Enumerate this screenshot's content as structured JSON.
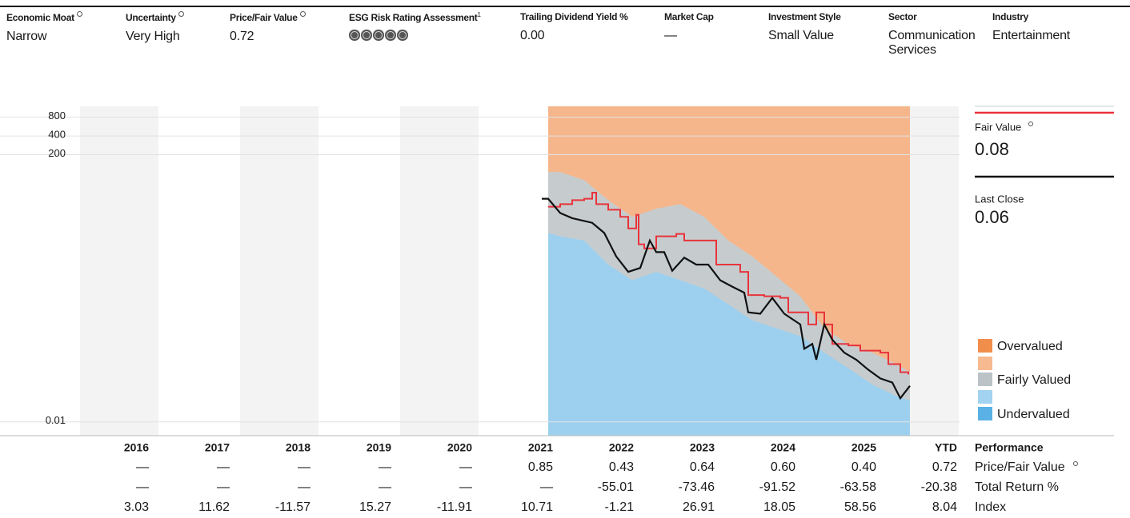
{
  "header": {
    "columns": [
      {
        "label": "Economic Moat",
        "value": "Narrow"
      },
      {
        "label": "Uncertainty",
        "value": "Very High"
      },
      {
        "label": "Price/Fair Value",
        "value": "0.72"
      },
      {
        "label": "ESG Risk Rating Assessment",
        "footnote": "1"
      },
      {
        "label": "Trailing Dividend Yield %",
        "value": "0.00"
      },
      {
        "label": "Market Cap",
        "value": "—"
      },
      {
        "label": "Investment Style",
        "value": "Small Value"
      },
      {
        "label": "Sector",
        "value": "Communication Services"
      },
      {
        "label": "Industry",
        "value": "Entertainment"
      }
    ]
  },
  "chart_data": {
    "type": "line",
    "log_y": true,
    "grid": true,
    "ylim": [
      0.006,
      1200
    ],
    "yticks": [
      0.01,
      200,
      400,
      800
    ],
    "xlim": [
      2016,
      2027
    ],
    "series": [
      {
        "name": "Fair Value",
        "color": "#e8333b",
        "step": true,
        "latest": 0.08,
        "x": [
          2021.85,
          2022.0,
          2022.15,
          2022.3,
          2022.4,
          2022.45,
          2022.6,
          2022.75,
          2022.85,
          2022.95,
          2022.98,
          2023.05,
          2023.2,
          2023.45,
          2023.55,
          2023.75,
          2023.95,
          2024.25,
          2024.35,
          2024.55,
          2024.75,
          2024.85,
          2025.0,
          2025.1,
          2025.2,
          2025.3,
          2025.4,
          2025.6,
          2025.75,
          2026.0,
          2026.1,
          2026.25,
          2026.35
        ],
        "values": [
          29,
          32,
          37,
          39,
          49,
          32,
          26,
          20,
          13,
          21.5,
          7.2,
          6.2,
          9.7,
          10.6,
          8.3,
          8.3,
          3.4,
          2.6,
          1.1,
          1.05,
          0.99,
          0.58,
          0.58,
          0.37,
          0.58,
          0.37,
          0.18,
          0.17,
          0.14,
          0.13,
          0.085,
          0.063,
          0.058
        ]
      },
      {
        "name": "Last Close",
        "color": "#111111",
        "latest": 0.06,
        "x": [
          2021.77,
          2021.85,
          2022.0,
          2022.15,
          2022.4,
          2022.55,
          2022.7,
          2022.85,
          2023.0,
          2023.12,
          2023.2,
          2023.3,
          2023.4,
          2023.55,
          2023.7,
          2023.85,
          2024.0,
          2024.15,
          2024.3,
          2024.35,
          2024.5,
          2024.65,
          2024.8,
          2025.0,
          2025.05,
          2025.15,
          2025.2,
          2025.3,
          2025.4,
          2025.55,
          2025.7,
          2025.85,
          2026.0,
          2026.15,
          2026.25,
          2026.37
        ],
        "values": [
          39,
          39,
          23,
          19,
          16,
          11,
          4.6,
          2.6,
          3.0,
          8.3,
          5.4,
          5.4,
          2.7,
          4.4,
          3.4,
          3.4,
          1.9,
          1.5,
          1.2,
          0.58,
          0.55,
          0.99,
          0.55,
          0.37,
          0.15,
          0.18,
          0.1,
          0.37,
          0.21,
          0.13,
          0.1,
          0.069,
          0.05,
          0.043,
          0.024,
          0.038
        ]
      }
    ],
    "bands": {
      "x": [
        2021.85,
        2022.0,
        2022.3,
        2022.6,
        2022.9,
        2023.2,
        2023.5,
        2023.8,
        2024.1,
        2024.4,
        2024.7,
        2025.0,
        2025.3,
        2025.6,
        2025.9,
        2026.2,
        2026.37
      ],
      "series": [
        {
          "name": "Overvalued",
          "color": "#f5b68c",
          "legend_color": "#f28e4c"
        },
        {
          "name": "Fairly Valued",
          "color": "#c6ccce",
          "legend_color": "#bcc3c6",
          "values": [
            105,
            105,
            78,
            37,
            20,
            27,
            32,
            20,
            8.3,
            4.6,
            2.2,
            1.05,
            0.32,
            0.18,
            0.13,
            0.085,
            0.063
          ]
        },
        {
          "name": "Undervalued",
          "color": "#9dd0ef",
          "legend_color": "#59b1e5",
          "values": [
            11,
            9.7,
            8.3,
            3.4,
            1.9,
            2.6,
            1.9,
            1.4,
            0.78,
            0.43,
            0.32,
            0.24,
            0.13,
            0.073,
            0.04,
            0.026,
            0.022
          ]
        }
      ]
    }
  },
  "table": {
    "label": "Performance",
    "columns": [
      "2016",
      "2017",
      "2018",
      "2019",
      "2020",
      "2021",
      "2022",
      "2023",
      "2024",
      "2025",
      "YTD"
    ],
    "rows": [
      {
        "label": "Price/Fair Value",
        "cells": [
          "—",
          "—",
          "—",
          "—",
          "—",
          "0.85",
          "0.43",
          "0.64",
          "0.60",
          "0.40",
          "0.72"
        ]
      },
      {
        "label": "Total Return %",
        "cells": [
          "—",
          "—",
          "—",
          "—",
          "—",
          "—",
          "-55.01",
          "-73.46",
          "-91.52",
          "-63.58",
          "-20.38"
        ]
      },
      {
        "label": "Index",
        "cells": [
          "3.03",
          "11.62",
          "-11.57",
          "15.27",
          "-11.91",
          "10.71",
          "-1.21",
          "26.91",
          "18.05",
          "58.56",
          "8.04"
        ]
      }
    ]
  }
}
